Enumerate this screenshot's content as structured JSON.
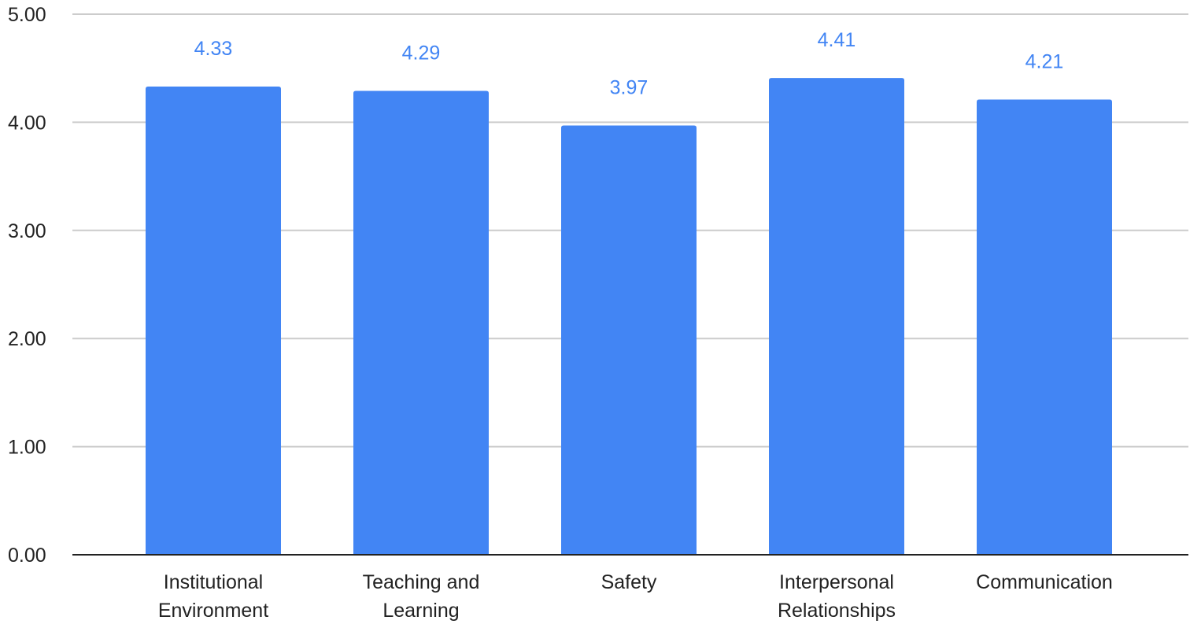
{
  "chart_data": {
    "type": "bar",
    "title": "",
    "xlabel": "",
    "ylabel": "",
    "categories": [
      [
        "Institutional",
        "Environment"
      ],
      [
        "Teaching and",
        "Learning"
      ],
      [
        "Safety"
      ],
      [
        "Interpersonal",
        "Relationships"
      ],
      [
        "Communication"
      ]
    ],
    "values": [
      4.33,
      4.29,
      3.97,
      4.41,
      4.21
    ],
    "data_labels": [
      "4.33",
      "4.29",
      "3.97",
      "4.41",
      "4.21"
    ],
    "ylim": [
      0,
      5
    ],
    "yticks": [
      0,
      1,
      2,
      3,
      4,
      5
    ],
    "ytick_labels": [
      "0.00",
      "1.00",
      "2.00",
      "3.00",
      "4.00",
      "5.00"
    ],
    "grid": true,
    "legend": "none",
    "colors": {
      "bar": "#4285f4",
      "data_label": "#4285f4",
      "gridline": "#cccccc",
      "axis": "#222222"
    }
  }
}
